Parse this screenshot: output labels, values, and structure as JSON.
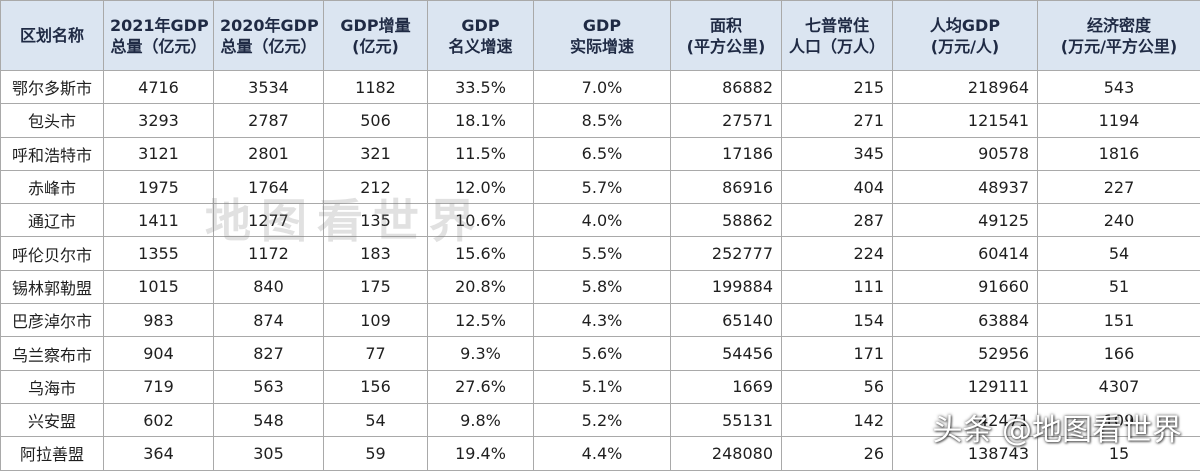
{
  "table": {
    "headers": [
      {
        "line1": "区划名称",
        "line2": ""
      },
      {
        "line1": "2021年GDP",
        "line2": "总量（亿元）"
      },
      {
        "line1": "2020年GDP",
        "line2": "总量（亿元）"
      },
      {
        "line1": "GDP增量",
        "line2": "(亿元)"
      },
      {
        "line1": "GDP",
        "line2": "名义增速"
      },
      {
        "line1": "GDP",
        "line2": "实际增速"
      },
      {
        "line1": "面积",
        "line2": "(平方公里)"
      },
      {
        "line1": "七普常住",
        "line2": "人口（万人）"
      },
      {
        "line1": "人均GDP",
        "line2": "(万元/人)"
      },
      {
        "line1": "经济密度",
        "line2": "(万元/平方公里)"
      }
    ],
    "rows": [
      [
        "鄂尔多斯市",
        "4716",
        "3534",
        "1182",
        "33.5%",
        "7.0%",
        "86882",
        "215",
        "218964",
        "543"
      ],
      [
        "包头市",
        "3293",
        "2787",
        "506",
        "18.1%",
        "8.5%",
        "27571",
        "271",
        "121541",
        "1194"
      ],
      [
        "呼和浩特市",
        "3121",
        "2801",
        "321",
        "11.5%",
        "6.5%",
        "17186",
        "345",
        "90578",
        "1816"
      ],
      [
        "赤峰市",
        "1975",
        "1764",
        "212",
        "12.0%",
        "5.7%",
        "86916",
        "404",
        "48937",
        "227"
      ],
      [
        "通辽市",
        "1411",
        "1277",
        "135",
        "10.6%",
        "4.0%",
        "58862",
        "287",
        "49125",
        "240"
      ],
      [
        "呼伦贝尔市",
        "1355",
        "1172",
        "183",
        "15.6%",
        "5.5%",
        "252777",
        "224",
        "60414",
        "54"
      ],
      [
        "锡林郭勒盟",
        "1015",
        "840",
        "175",
        "20.8%",
        "5.8%",
        "199884",
        "111",
        "91660",
        "51"
      ],
      [
        "巴彦淖尔市",
        "983",
        "874",
        "109",
        "12.5%",
        "4.3%",
        "65140",
        "154",
        "63884",
        "151"
      ],
      [
        "乌兰察布市",
        "904",
        "827",
        "77",
        "9.3%",
        "5.6%",
        "54456",
        "171",
        "52956",
        "166"
      ],
      [
        "乌海市",
        "719",
        "563",
        "156",
        "27.6%",
        "5.1%",
        "1669",
        "56",
        "129111",
        "4307"
      ],
      [
        "兴安盟",
        "602",
        "548",
        "54",
        "9.8%",
        "5.2%",
        "55131",
        "142",
        "42471",
        "109"
      ],
      [
        "阿拉善盟",
        "364",
        "305",
        "59",
        "19.4%",
        "4.4%",
        "248080",
        "26",
        "138743",
        "15"
      ]
    ]
  },
  "watermarks": {
    "center": "地图看世界",
    "corner": "头条 @地图看世界"
  }
}
